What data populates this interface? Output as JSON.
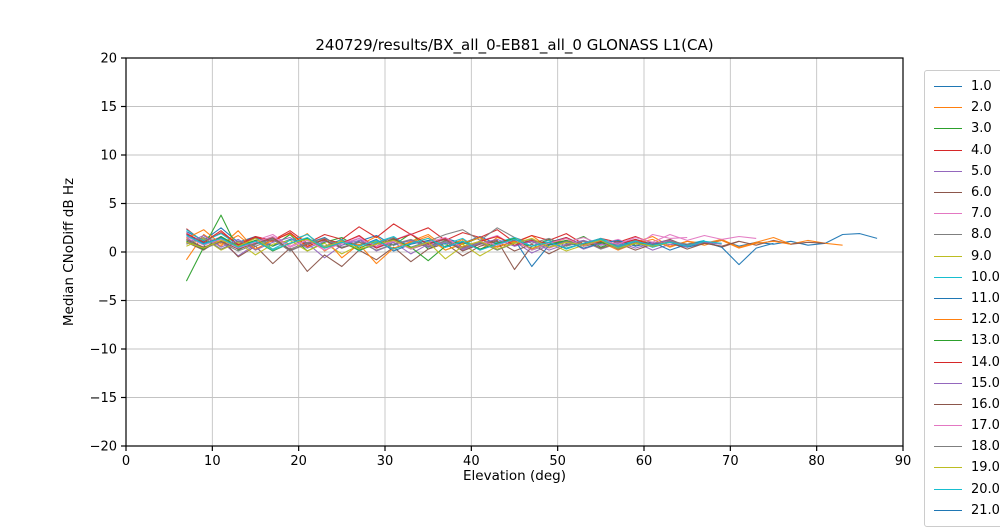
{
  "chart_data": {
    "type": "line",
    "title": "240729/results/BX_all_0-EB81_all_0 GLONASS L1(CA)",
    "xlabel": "Elevation (deg)",
    "ylabel": "Median CNoDiff dB Hz",
    "xlim": [
      0,
      90
    ],
    "ylim": [
      -20,
      20
    ],
    "xticks": [
      0,
      10,
      20,
      30,
      40,
      50,
      60,
      70,
      80,
      90
    ],
    "yticks": [
      -20,
      -15,
      -10,
      -5,
      0,
      5,
      10,
      15,
      20
    ],
    "grid": true,
    "grid_color": "#c3c3c3",
    "spine_color": "#000000",
    "legend_position": "outside-right",
    "legend_extra_clipped": "21.0",
    "x_step": 2,
    "series": [
      {
        "name": "1.0",
        "color": "#1f77b4",
        "x_start": 7,
        "y": [
          2.1,
          1.2,
          2.5,
          1.0,
          1.6,
          0.6,
          1.3,
          0.9,
          1.5,
          0.4,
          1.1,
          1.7,
          0.7,
          1.2,
          0.5,
          1.4,
          0.9,
          1.6,
          0.8,
          1.2,
          0.3,
          1.0,
          1.5,
          0.7,
          1.1,
          0.6,
          1.3,
          0.8,
          1.0,
          0.5,
          0.9,
          1.2,
          0.6,
          1.0,
          0.8,
          1.1,
          0.7,
          0.9,
          1.8,
          1.9,
          1.4
        ]
      },
      {
        "name": "2.0",
        "color": "#ff7f0e",
        "x_start": 7,
        "y": [
          -0.8,
          1.8,
          0.6,
          2.2,
          0.2,
          1.4,
          0.8,
          1.9,
          0.1,
          1.2,
          0.7,
          1.6,
          0.3,
          1.1,
          1.8,
          0.5,
          1.3,
          0.2,
          1.5,
          0.9,
          1.7,
          0.4,
          1.2,
          0.8,
          1.4,
          0.3,
          1.0,
          1.6,
          0.6,
          1.1,
          0.9,
          1.3,
          0.5,
          1.0,
          1.5,
          0.8,
          1.2,
          0.9,
          0.7
        ]
      },
      {
        "name": "3.0",
        "color": "#2ca02c",
        "x_start": 7,
        "y": [
          -3.0,
          0.5,
          3.8,
          0.2,
          1.2,
          0.6,
          1.8,
          0.1,
          1.0,
          1.5,
          0.4,
          1.1,
          0.7,
          1.9,
          0.3,
          1.2,
          0.8,
          1.5,
          0.2,
          1.0,
          0.6,
          1.3,
          0.9,
          1.6,
          0.5,
          1.1,
          0.7,
          1.0
        ]
      },
      {
        "name": "4.0",
        "color": "#d62728",
        "x_start": 7,
        "y": [
          2.4,
          1.0,
          2.0,
          0.8,
          1.6,
          1.2,
          2.2,
          0.9,
          1.8,
          1.3,
          2.6,
          1.5,
          2.9,
          1.8,
          2.5,
          1.2,
          2.0,
          1.5,
          2.3,
          1.0,
          1.7,
          1.2,
          1.9,
          0.8,
          1.4,
          1.0,
          1.6,
          0.9,
          1.2
        ]
      },
      {
        "name": "5.0",
        "color": "#9467bd",
        "x_start": 7,
        "y": [
          1.5,
          0.3,
          1.1,
          -0.4,
          0.8,
          1.4,
          0.1,
          0.9,
          -0.6,
          0.7,
          1.2,
          0.4,
          1.0,
          -0.2,
          0.8,
          1.3,
          0.2,
          0.9,
          0.5,
          1.1,
          -0.1,
          0.7,
          1.2,
          0.3,
          0.9,
          0.6,
          1.0,
          0.2,
          0.8,
          0.5
        ]
      },
      {
        "name": "6.0",
        "color": "#8c564b",
        "x_start": 7,
        "y": [
          1.0,
          0.2,
          1.4,
          -0.5,
          0.6,
          -1.2,
          0.4,
          -2.0,
          -0.3,
          -1.5,
          0.2,
          -0.8,
          0.5,
          -1.0,
          0.3,
          0.9,
          -0.4,
          0.6,
          1.1,
          0.1,
          0.8,
          -0.2,
          0.7,
          1.2,
          0.4,
          0.9,
          0.2,
          0.8,
          1.3,
          0.6,
          1.0,
          0.5,
          1.1,
          0.7,
          1.2,
          0.8,
          1.0,
          0.9
        ]
      },
      {
        "name": "7.0",
        "color": "#e377c2",
        "x_start": 7,
        "y": [
          2.0,
          0.8,
          1.6,
          0.4,
          1.2,
          1.8,
          0.6,
          1.4,
          0.2,
          1.0,
          1.6,
          0.5,
          1.2,
          1.9,
          0.7,
          1.3,
          0.3,
          1.1,
          1.7,
          0.6,
          1.2,
          0.4,
          1.0,
          1.5,
          0.8,
          1.3,
          0.6,
          1.8,
          1.4,
          1.5
        ]
      },
      {
        "name": "8.0",
        "color": "#7f7f7f",
        "x_start": 7,
        "y": [
          1.2,
          0.4,
          1.0,
          0.1,
          0.8,
          1.4,
          0.3,
          1.0,
          0.6,
          1.3,
          0.2,
          0.9,
          1.5,
          0.5,
          1.1,
          1.8,
          2.3,
          1.2,
          2.5,
          1.5,
          0.9,
          1.4,
          0.6,
          1.1,
          0.3,
          0.9,
          1.2,
          0.5,
          1.0,
          0.7,
          0.9
        ]
      },
      {
        "name": "9.0",
        "color": "#bcbd22",
        "x_start": 7,
        "y": [
          0.6,
          1.4,
          0.2,
          1.0,
          -0.3,
          0.8,
          1.2,
          0.1,
          0.9,
          -0.2,
          0.7,
          1.1,
          0.3,
          0.9,
          1.4,
          0.2,
          0.8,
          -0.4,
          0.6,
          1.0,
          0.4,
          0.9,
          0.1,
          0.7,
          1.2,
          0.5,
          0.9,
          0.6
        ]
      },
      {
        "name": "10.0",
        "color": "#17becf",
        "x_start": 7,
        "y": [
          2.3,
          1.1,
          1.9,
          0.7,
          1.5,
          0.3,
          1.2,
          1.8,
          0.5,
          1.3,
          0.1,
          1.0,
          1.6,
          0.4,
          1.1,
          0.8,
          1.4,
          0.2,
          1.0,
          1.5,
          0.6,
          1.2,
          0.3,
          0.9,
          1.4,
          0.7,
          1.1,
          0.5,
          1.0,
          0.8,
          1.2
        ]
      },
      {
        "name": "11.0",
        "color": "#1f77b4",
        "x_start": 7,
        "y": [
          1.8,
          0.9,
          1.5,
          0.5,
          1.2,
          0.2,
          0.9,
          1.4,
          0.4,
          1.1,
          0.6,
          1.3,
          0.1,
          0.8,
          1.2,
          0.5,
          1.0,
          0.3,
          0.9,
          1.3,
          -1.5,
          0.7,
          1.1,
          0.4,
          0.9,
          1.2,
          0.6,
          1.0,
          0.2,
          0.8,
          1.1,
          0.5,
          -1.3,
          0.4,
          0.9
        ]
      },
      {
        "name": "12.0",
        "color": "#ff7f0e",
        "x_start": 7,
        "y": [
          1.4,
          2.3,
          0.8,
          1.7,
          0.3,
          1.2,
          1.9,
          0.5,
          1.4,
          -0.6,
          0.8,
          -1.2,
          0.4,
          1.0,
          1.6,
          0.2,
          0.9,
          1.5,
          0.5,
          1.1,
          0.3,
          0.8,
          1.4,
          0.6,
          1.0,
          0.2,
          0.9,
          1.3,
          0.5,
          1.1,
          0.7,
          1.2,
          0.4,
          0.9,
          1.1,
          0.8
        ]
      },
      {
        "name": "13.0",
        "color": "#2ca02c",
        "x_start": 7,
        "y": [
          1.1,
          0.3,
          1.6,
          0.6,
          1.2,
          0.1,
          0.9,
          1.4,
          0.4,
          1.0,
          0.2,
          0.8,
          1.3,
          0.5,
          -0.9,
          0.6,
          1.1,
          0.3,
          0.9,
          1.4,
          0.2,
          0.8,
          1.2,
          0.6,
          1.0,
          0.4,
          0.9,
          0.7
        ]
      },
      {
        "name": "14.0",
        "color": "#d62728",
        "x_start": 7,
        "y": [
          1.9,
          1.0,
          2.2,
          0.7,
          1.5,
          1.1,
          2.0,
          0.6,
          1.3,
          0.9,
          1.7,
          0.4,
          1.2,
          1.8,
          0.8,
          1.4,
          0.5,
          1.1,
          1.6,
          0.7,
          1.2,
          0.9,
          1.5,
          0.6,
          1.1,
          0.8,
          1.3,
          0.7,
          1.0
        ]
      },
      {
        "name": "15.0",
        "color": "#9467bd",
        "x_start": 7,
        "y": [
          0.9,
          1.7,
          0.5,
          1.3,
          0.2,
          1.0,
          1.5,
          0.4,
          1.1,
          0.7,
          1.4,
          0.1,
          0.8,
          1.2,
          0.5,
          1.0,
          0.3,
          0.9,
          1.3,
          0.6,
          1.1,
          0.2,
          0.8,
          1.2,
          0.7,
          1.0,
          0.4,
          0.9,
          1.2,
          0.6,
          1.0,
          0.8
        ]
      },
      {
        "name": "16.0",
        "color": "#8c564b",
        "x_start": 7,
        "y": [
          1.3,
          0.5,
          1.1,
          0.3,
          0.9,
          1.5,
          0.2,
          0.8,
          1.2,
          0.4,
          1.0,
          0.6,
          1.4,
          0.3,
          0.9,
          1.3,
          0.1,
          0.8,
          1.2,
          -1.8,
          0.6,
          1.0,
          0.4,
          0.9,
          1.3,
          0.5,
          1.1,
          0.7,
          1.0,
          0.3,
          0.9,
          0.6,
          1.1
        ]
      },
      {
        "name": "17.0",
        "color": "#e377c2",
        "x_start": 7,
        "y": [
          1.6,
          0.7,
          1.3,
          0.4,
          1.0,
          1.6,
          0.5,
          1.2,
          0.2,
          0.9,
          1.4,
          0.6,
          1.1,
          0.3,
          1.0,
          1.5,
          0.4,
          1.1,
          0.7,
          1.3,
          0.2,
          0.9,
          1.4,
          0.6,
          1.2,
          0.8,
          1.5,
          1.0,
          1.8,
          1.2,
          1.7,
          1.3,
          1.6,
          1.4
        ]
      },
      {
        "name": "18.0",
        "color": "#7f7f7f",
        "x_start": 7,
        "y": [
          0.8,
          1.5,
          0.3,
          1.1,
          0.6,
          1.3,
          0.1,
          0.9,
          1.4,
          0.5,
          1.0,
          0.2,
          0.8,
          1.3,
          0.6,
          1.1,
          0.4,
          1.0,
          0.2,
          0.9,
          1.3,
          0.5,
          1.1,
          0.7,
          1.2,
          0.3,
          0.9,
          0.6,
          1.1,
          0.8,
          1.0
        ]
      },
      {
        "name": "19.0",
        "color": "#bcbd22",
        "x_start": 7,
        "y": [
          1.0,
          0.4,
          1.2,
          0.6,
          1.4,
          0.2,
          0.9,
          1.3,
          0.5,
          1.1,
          0.3,
          0.8,
          1.2,
          0.4,
          1.0,
          -0.7,
          0.6,
          1.1,
          0.3,
          0.9,
          1.4,
          0.5,
          1.0,
          0.7,
          1.2,
          0.4,
          0.9,
          0.6,
          1.0
        ]
      },
      {
        "name": "20.0",
        "color": "#17becf",
        "x_start": 7,
        "y": [
          1.7,
          0.8,
          1.4,
          0.5,
          1.1,
          0.2,
          0.9,
          1.5,
          0.4,
          1.0,
          0.6,
          1.2,
          0.3,
          0.9,
          1.4,
          0.5,
          1.1,
          0.2,
          0.8,
          1.3,
          0.6,
          1.0,
          0.4,
          0.9,
          1.3,
          0.5,
          1.1,
          0.7,
          1.0,
          0.6,
          1.1,
          0.9
        ]
      }
    ]
  }
}
